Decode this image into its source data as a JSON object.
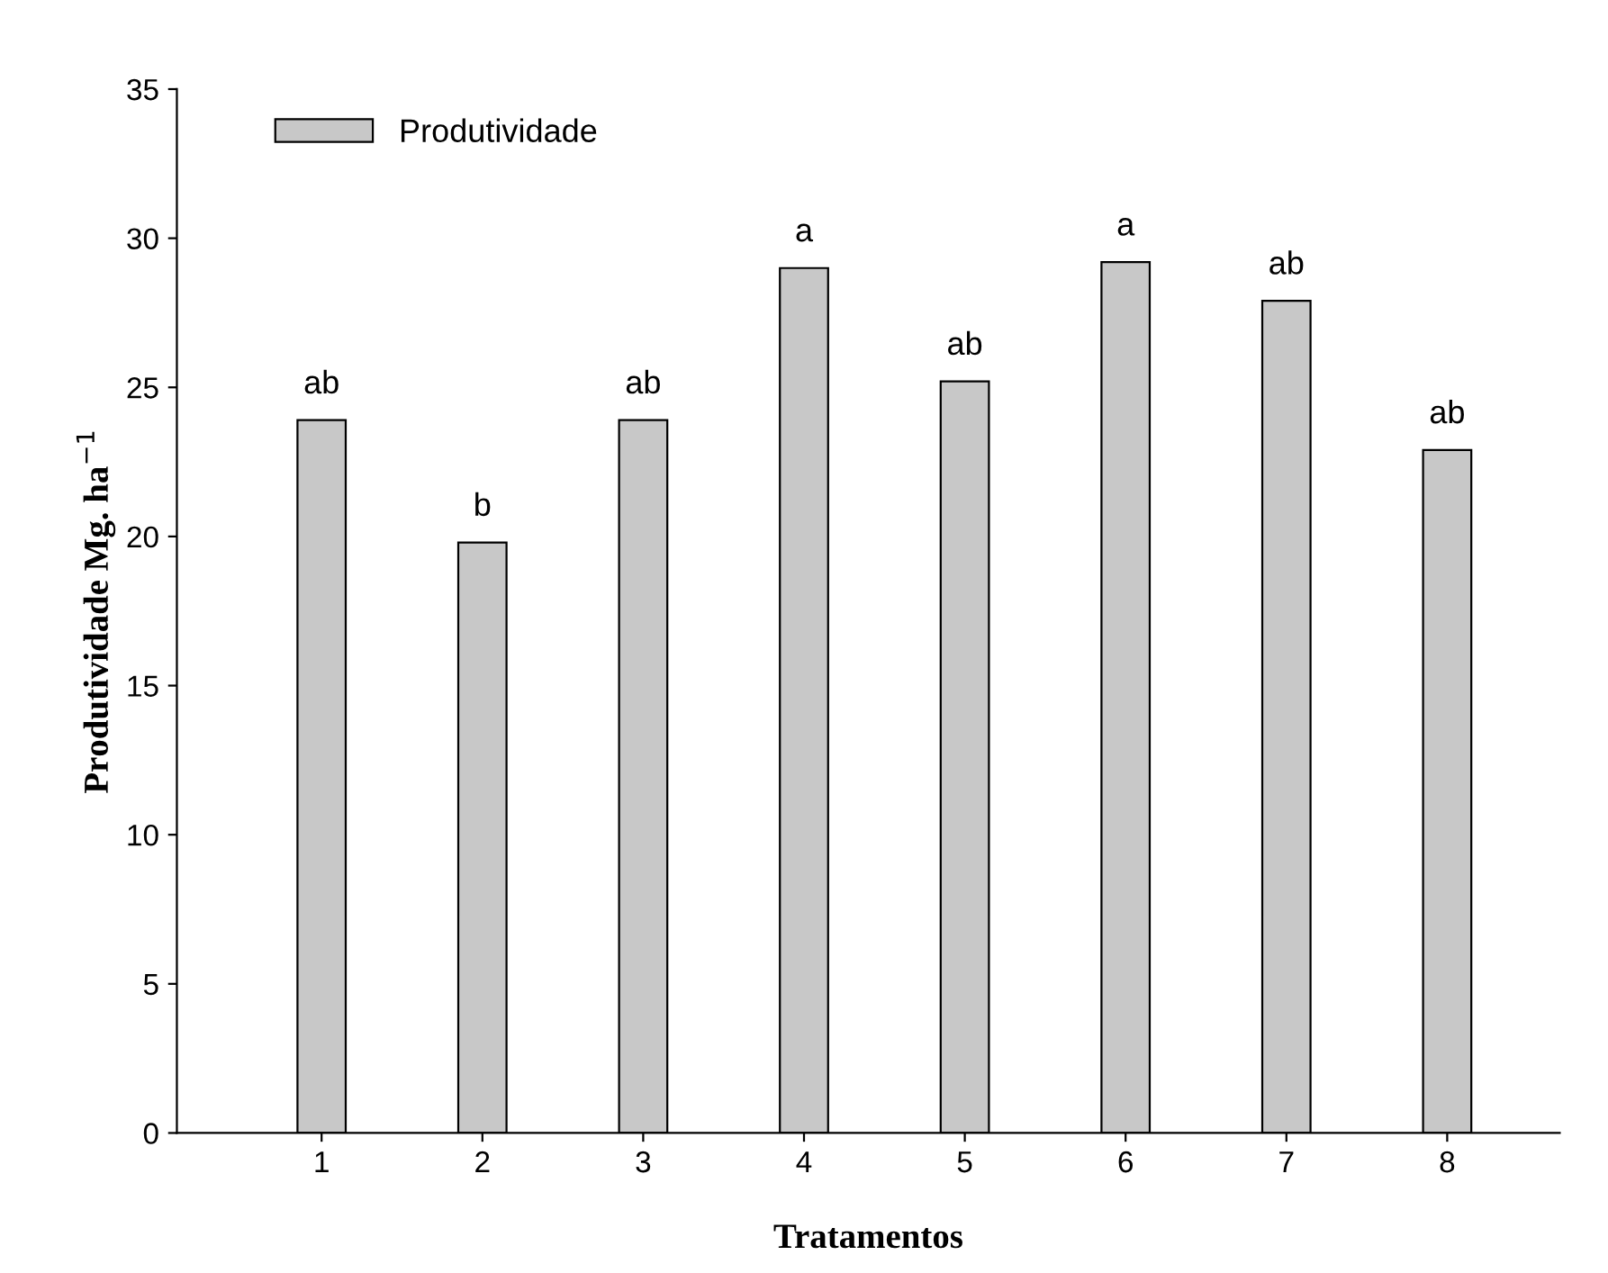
{
  "chart_data": {
    "type": "bar",
    "xlabel": "Tratamentos",
    "ylabel": "Produtividade Mg. ha$^{−1}$",
    "categories": [
      "1",
      "2",
      "3",
      "4",
      "5",
      "6",
      "7",
      "8"
    ],
    "series": [
      {
        "name": "Produtividade",
        "color": "#c8c8c8",
        "values": [
          23.9,
          19.8,
          23.9,
          29.0,
          25.2,
          29.2,
          27.9,
          22.9
        ],
        "value_labels": [
          "ab",
          "b",
          "ab",
          "a",
          "ab",
          "a",
          "ab",
          "ab"
        ]
      }
    ],
    "ylim": [
      0,
      35
    ],
    "yticks": [
      0,
      5,
      10,
      15,
      20,
      25,
      30,
      35
    ],
    "grid": false,
    "legend": "top left"
  }
}
